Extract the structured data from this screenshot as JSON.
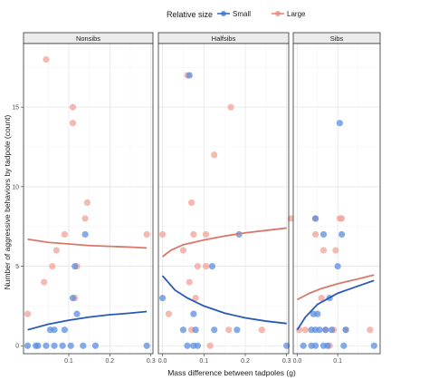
{
  "chart_data": {
    "type": "scatter",
    "xlabel": "Mass difference between tadpoles (g)",
    "ylabel": "Number of aggressive behaviors by tadpole (count)",
    "ylim": [
      -0.5,
      19
    ],
    "y_ticks": [
      0,
      5,
      10,
      15
    ],
    "y_tick_labels": [
      "0",
      "5",
      "10",
      "15"
    ],
    "legend": {
      "title": "Relative size",
      "position": "top",
      "items": [
        {
          "label": "Small",
          "color": "#3d6fcf"
        },
        {
          "label": "Large",
          "color": "#e8877c"
        }
      ]
    },
    "series_colors": {
      "Small": {
        "point": "#5b8ee0",
        "line": "#2a58b5"
      },
      "Large": {
        "point": "#f0a297",
        "line": "#d9786a"
      }
    },
    "grid": true,
    "panels": [
      {
        "strip": "Nonsibs",
        "xlim": [
          -0.01,
          0.305
        ],
        "x_ticks": [
          0.1,
          0.2,
          0.3
        ],
        "x_tick_labels": [
          "0.1",
          "0.2",
          "0.3"
        ],
        "series": [
          {
            "name": "Small",
            "points": [
              [
                0.0,
                0
              ],
              [
                0.02,
                0
              ],
              [
                0.025,
                0
              ],
              [
                0.045,
                0
              ],
              [
                0.065,
                0
              ],
              [
                0.085,
                0
              ],
              [
                0.105,
                0
              ],
              [
                0.135,
                0
              ],
              [
                0.165,
                0
              ],
              [
                0.29,
                0
              ],
              [
                0.055,
                1
              ],
              [
                0.065,
                1
              ],
              [
                0.09,
                1
              ],
              [
                0.11,
                3
              ],
              [
                0.12,
                2
              ],
              [
                0.115,
                5
              ],
              [
                0.14,
                7
              ]
            ],
            "fit": [
              [
                0.0,
                1.0
              ],
              [
                0.05,
                1.35
              ],
              [
                0.1,
                1.6
              ],
              [
                0.15,
                1.8
              ],
              [
                0.2,
                1.95
              ],
              [
                0.25,
                2.05
              ],
              [
                0.29,
                2.15
              ]
            ]
          },
          {
            "name": "Large",
            "points": [
              [
                0.045,
                18
              ],
              [
                0.11,
                15
              ],
              [
                0.11,
                14
              ],
              [
                0.145,
                9
              ],
              [
                0.14,
                8
              ],
              [
                0.0,
                2
              ],
              [
                0.04,
                4
              ],
              [
                0.07,
                6
              ],
              [
                0.09,
                7
              ],
              [
                0.06,
                5
              ],
              [
                0.12,
                5
              ],
              [
                0.115,
                3
              ],
              [
                0.29,
                7
              ]
            ],
            "fit": [
              [
                0.0,
                6.7
              ],
              [
                0.05,
                6.5
              ],
              [
                0.1,
                6.4
              ],
              [
                0.15,
                6.3
              ],
              [
                0.2,
                6.25
              ],
              [
                0.25,
                6.2
              ],
              [
                0.29,
                6.15
              ]
            ]
          }
        ]
      },
      {
        "strip": "Halfsibs",
        "xlim": [
          -0.01,
          0.305
        ],
        "x_ticks": [
          0.0,
          0.1,
          0.2,
          0.3
        ],
        "x_tick_labels": [
          "0.0",
          "0.1",
          "0.2",
          "0.3"
        ],
        "series": [
          {
            "name": "Small",
            "points": [
              [
                0.065,
                17
              ],
              [
                0.185,
                7
              ],
              [
                0.12,
                5
              ],
              [
                0.0,
                3
              ],
              [
                0.075,
                2
              ],
              [
                0.05,
                1
              ],
              [
                0.08,
                1
              ],
              [
                0.125,
                1
              ],
              [
                0.18,
                1
              ],
              [
                0.06,
                0
              ],
              [
                0.075,
                0
              ],
              [
                0.085,
                0
              ],
              [
                0.3,
                0
              ]
            ],
            "fit": [
              [
                0.0,
                4.4
              ],
              [
                0.03,
                3.5
              ],
              [
                0.06,
                3.0
              ],
              [
                0.1,
                2.5
              ],
              [
                0.15,
                2.05
              ],
              [
                0.2,
                1.75
              ],
              [
                0.25,
                1.55
              ],
              [
                0.3,
                1.4
              ]
            ]
          },
          {
            "name": "Large",
            "points": [
              [
                0.06,
                17
              ],
              [
                0.165,
                15
              ],
              [
                0.125,
                12
              ],
              [
                0.07,
                9
              ],
              [
                0.075,
                7
              ],
              [
                0.105,
                7
              ],
              [
                0.0,
                7
              ],
              [
                0.05,
                6
              ],
              [
                0.085,
                5
              ],
              [
                0.105,
                5
              ],
              [
                0.065,
                4
              ],
              [
                0.08,
                3
              ],
              [
                0.015,
                2
              ],
              [
                0.07,
                1
              ],
              [
                0.16,
                1
              ],
              [
                0.24,
                1
              ],
              [
                0.115,
                0
              ],
              [
                0.31,
                8
              ]
            ],
            "fit": [
              [
                0.0,
                5.6
              ],
              [
                0.02,
                6.0
              ],
              [
                0.05,
                6.35
              ],
              [
                0.1,
                6.65
              ],
              [
                0.15,
                6.9
              ],
              [
                0.2,
                7.1
              ],
              [
                0.25,
                7.25
              ],
              [
                0.3,
                7.4
              ]
            ]
          }
        ]
      },
      {
        "strip": "Sibs",
        "xlim": [
          -0.01,
          0.205
        ],
        "x_ticks": [
          0.0,
          0.1
        ],
        "x_tick_labels": [
          "0.0",
          "0.1"
        ],
        "series": [
          {
            "name": "Small",
            "points": [
              [
                0.105,
                14
              ],
              [
                0.045,
                8
              ],
              [
                0.065,
                7
              ],
              [
                0.11,
                7
              ],
              [
                0.1,
                5
              ],
              [
                0.08,
                3
              ],
              [
                0.04,
                2
              ],
              [
                0.05,
                2
              ],
              [
                0.035,
                1
              ],
              [
                0.045,
                1
              ],
              [
                0.055,
                1
              ],
              [
                0.07,
                1
              ],
              [
                0.085,
                1
              ],
              [
                0.12,
                1
              ],
              [
                0.015,
                0
              ],
              [
                0.035,
                0
              ],
              [
                0.045,
                0
              ],
              [
                0.065,
                0
              ],
              [
                0.075,
                0
              ],
              [
                0.115,
                0
              ],
              [
                0.19,
                0
              ]
            ],
            "fit": [
              [
                0.0,
                1.0
              ],
              [
                0.02,
                1.8
              ],
              [
                0.05,
                2.6
              ],
              [
                0.1,
                3.3
              ],
              [
                0.15,
                3.75
              ],
              [
                0.19,
                4.1
              ]
            ]
          },
          {
            "name": "Large",
            "points": [
              [
                0.11,
                8
              ],
              [
                0.105,
                8
              ],
              [
                0.045,
                8
              ],
              [
                0.045,
                7
              ],
              [
                0.065,
                6
              ],
              [
                0.095,
                6
              ],
              [
                0.06,
                3
              ],
              [
                0.005,
                1
              ],
              [
                0.02,
                1
              ],
              [
                0.07,
                1
              ],
              [
                0.09,
                1
              ],
              [
                0.12,
                1
              ],
              [
                0.08,
                0
              ],
              [
                0.18,
                1
              ]
            ],
            "fit": [
              [
                0.0,
                2.9
              ],
              [
                0.03,
                3.3
              ],
              [
                0.06,
                3.6
              ],
              [
                0.1,
                3.9
              ],
              [
                0.15,
                4.2
              ],
              [
                0.19,
                4.45
              ]
            ]
          }
        ]
      }
    ]
  }
}
